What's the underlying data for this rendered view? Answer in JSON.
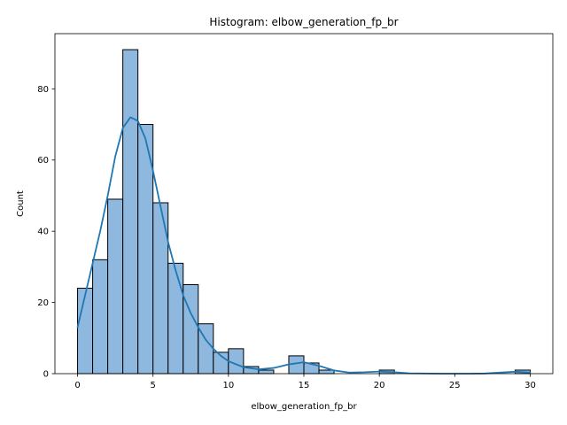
{
  "chart_data": {
    "type": "bar",
    "title": "Histogram: elbow_generation_fp_br",
    "xlabel": "elbow_generation_fp_br",
    "ylabel": "Count",
    "xlim": [
      -1.5,
      31.5
    ],
    "ylim": [
      0,
      95.5
    ],
    "xticks": [
      0,
      5,
      10,
      15,
      20,
      25,
      30
    ],
    "yticks": [
      0,
      20,
      40,
      60,
      80
    ],
    "bin_width": 1,
    "bins": [
      {
        "x0": 0,
        "count": 24
      },
      {
        "x0": 1,
        "count": 32
      },
      {
        "x0": 2,
        "count": 49
      },
      {
        "x0": 3,
        "count": 91
      },
      {
        "x0": 4,
        "count": 70
      },
      {
        "x0": 5,
        "count": 48
      },
      {
        "x0": 6,
        "count": 31
      },
      {
        "x0": 7,
        "count": 25
      },
      {
        "x0": 8,
        "count": 14
      },
      {
        "x0": 9,
        "count": 6
      },
      {
        "x0": 10,
        "count": 7
      },
      {
        "x0": 11,
        "count": 2
      },
      {
        "x0": 12,
        "count": 1
      },
      {
        "x0": 13,
        "count": 0
      },
      {
        "x0": 14,
        "count": 5
      },
      {
        "x0": 15,
        "count": 3
      },
      {
        "x0": 16,
        "count": 1
      },
      {
        "x0": 17,
        "count": 0
      },
      {
        "x0": 18,
        "count": 0
      },
      {
        "x0": 19,
        "count": 0
      },
      {
        "x0": 20,
        "count": 1
      },
      {
        "x0": 21,
        "count": 0
      },
      {
        "x0": 22,
        "count": 0
      },
      {
        "x0": 23,
        "count": 0
      },
      {
        "x0": 24,
        "count": 0
      },
      {
        "x0": 25,
        "count": 0
      },
      {
        "x0": 26,
        "count": 0
      },
      {
        "x0": 27,
        "count": 0
      },
      {
        "x0": 28,
        "count": 0
      },
      {
        "x0": 29,
        "count": 1
      }
    ],
    "kde": [
      [
        0,
        13
      ],
      [
        0.5,
        22
      ],
      [
        1,
        31
      ],
      [
        1.5,
        40
      ],
      [
        2,
        50
      ],
      [
        2.5,
        61
      ],
      [
        3,
        69
      ],
      [
        3.5,
        72
      ],
      [
        4,
        71
      ],
      [
        4.5,
        66
      ],
      [
        5,
        57
      ],
      [
        5.5,
        47
      ],
      [
        6,
        37
      ],
      [
        6.5,
        29
      ],
      [
        7,
        22
      ],
      [
        7.5,
        17
      ],
      [
        8,
        13
      ],
      [
        8.5,
        9.5
      ],
      [
        9,
        7
      ],
      [
        9.5,
        5
      ],
      [
        10,
        3.5
      ],
      [
        11,
        1.8
      ],
      [
        12,
        1.2
      ],
      [
        13,
        1.6
      ],
      [
        14,
        2.6
      ],
      [
        15,
        3.2
      ],
      [
        16,
        2.2
      ],
      [
        17,
        0.9
      ],
      [
        18,
        0.3
      ],
      [
        19,
        0.4
      ],
      [
        20,
        0.6
      ],
      [
        21,
        0.4
      ],
      [
        22,
        0.1
      ],
      [
        24,
        0
      ],
      [
        26,
        0
      ],
      [
        27,
        0.05
      ],
      [
        28,
        0.3
      ],
      [
        29,
        0.55
      ],
      [
        30,
        0.3
      ]
    ],
    "grid": false,
    "colors": {
      "bar_fill": "#8fb8de",
      "bar_edge": "#000000",
      "kde_line": "#1f77b4"
    }
  }
}
